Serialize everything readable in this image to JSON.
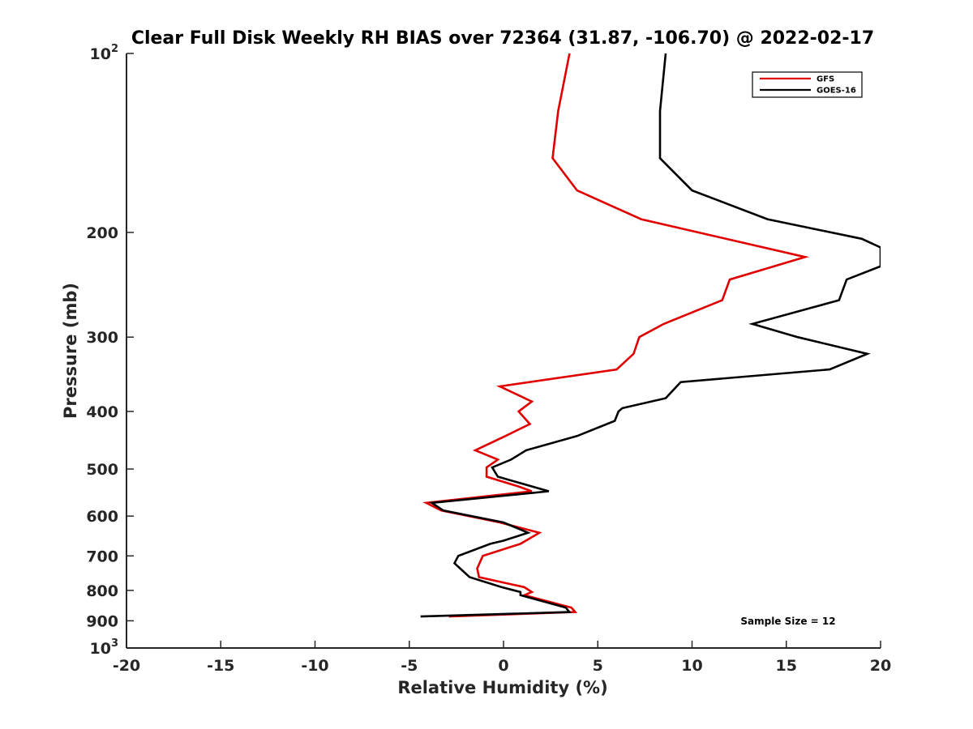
{
  "chart_data": {
    "type": "line",
    "title": "Clear Full Disk Weekly RH BIAS over 72364 (31.87, -106.70) @ 2022-02-17",
    "xlabel": "Relative Humidity (%)",
    "ylabel": "Pressure (mb)",
    "xlim": [
      -20,
      20
    ],
    "ylim": [
      100,
      1000
    ],
    "yscale": "log",
    "y_reversed": true,
    "x_ticks": [
      "-20",
      "-15",
      "-10",
      "-5",
      "0",
      "5",
      "10",
      "15",
      "20"
    ],
    "y_ticks": [
      {
        "value": 100,
        "base": "10",
        "exp": "2"
      },
      {
        "value": 200,
        "label": "200"
      },
      {
        "value": 300,
        "label": "300"
      },
      {
        "value": 400,
        "label": "400"
      },
      {
        "value": 500,
        "label": "500"
      },
      {
        "value": 600,
        "label": "600"
      },
      {
        "value": 700,
        "label": "700"
      },
      {
        "value": 800,
        "label": "800"
      },
      {
        "value": 900,
        "label": "900"
      },
      {
        "value": 1000,
        "base": "10",
        "exp": "3"
      }
    ],
    "grid": false,
    "legend_position": "top-right",
    "annotation": "Sample Size = 12",
    "series": [
      {
        "name": "GFS",
        "color": "#e00000",
        "points": [
          [
            3.5,
            100
          ],
          [
            2.9,
            125
          ],
          [
            2.6,
            150
          ],
          [
            3.9,
            170
          ],
          [
            7.3,
            190
          ],
          [
            16.0,
            220
          ],
          [
            12.0,
            240
          ],
          [
            11.6,
            260
          ],
          [
            8.5,
            285
          ],
          [
            7.2,
            300
          ],
          [
            6.9,
            320
          ],
          [
            6.0,
            340
          ],
          [
            -0.2,
            363
          ],
          [
            1.5,
            385
          ],
          [
            0.8,
            400
          ],
          [
            1.4,
            420
          ],
          [
            0.1,
            440
          ],
          [
            -1.5,
            465
          ],
          [
            -0.3,
            482
          ],
          [
            -0.9,
            497
          ],
          [
            -0.9,
            515
          ],
          [
            0.8,
            535
          ],
          [
            1.5,
            545
          ],
          [
            -4.1,
            570
          ],
          [
            -3.3,
            587
          ],
          [
            -0.2,
            615
          ],
          [
            1.9,
            640
          ],
          [
            0.9,
            668
          ],
          [
            -1.1,
            700
          ],
          [
            -1.4,
            735
          ],
          [
            -1.3,
            760
          ],
          [
            1.1,
            790
          ],
          [
            1.5,
            805
          ],
          [
            1.1,
            815
          ],
          [
            3.6,
            855
          ],
          [
            3.8,
            870
          ],
          [
            -2.9,
            885
          ]
        ]
      },
      {
        "name": "GOES-16",
        "color": "#000000",
        "points": [
          [
            8.6,
            100
          ],
          [
            8.3,
            125
          ],
          [
            8.3,
            150
          ],
          [
            10.0,
            170
          ],
          [
            14.0,
            190
          ],
          [
            19.0,
            205
          ],
          [
            20.0,
            212
          ],
          [
            20.0,
            228
          ],
          [
            18.2,
            240
          ],
          [
            17.8,
            260
          ],
          [
            13.2,
            285
          ],
          [
            15.6,
            300
          ],
          [
            19.3,
            320
          ],
          [
            17.3,
            340
          ],
          [
            9.4,
            357
          ],
          [
            8.6,
            380
          ],
          [
            6.3,
            395
          ],
          [
            6.1,
            400
          ],
          [
            5.9,
            415
          ],
          [
            3.9,
            440
          ],
          [
            1.2,
            465
          ],
          [
            0.4,
            482
          ],
          [
            -0.6,
            497
          ],
          [
            -0.3,
            515
          ],
          [
            2.4,
            545
          ],
          [
            -3.8,
            570
          ],
          [
            -3.2,
            587
          ],
          [
            0.0,
            615
          ],
          [
            1.3,
            640
          ],
          [
            0.0,
            660
          ],
          [
            -0.7,
            668
          ],
          [
            -2.4,
            700
          ],
          [
            -2.6,
            720
          ],
          [
            -1.8,
            760
          ],
          [
            -0.1,
            790
          ],
          [
            0.9,
            805
          ],
          [
            0.9,
            815
          ],
          [
            3.3,
            855
          ],
          [
            3.5,
            870
          ],
          [
            -4.4,
            885
          ]
        ]
      }
    ]
  }
}
